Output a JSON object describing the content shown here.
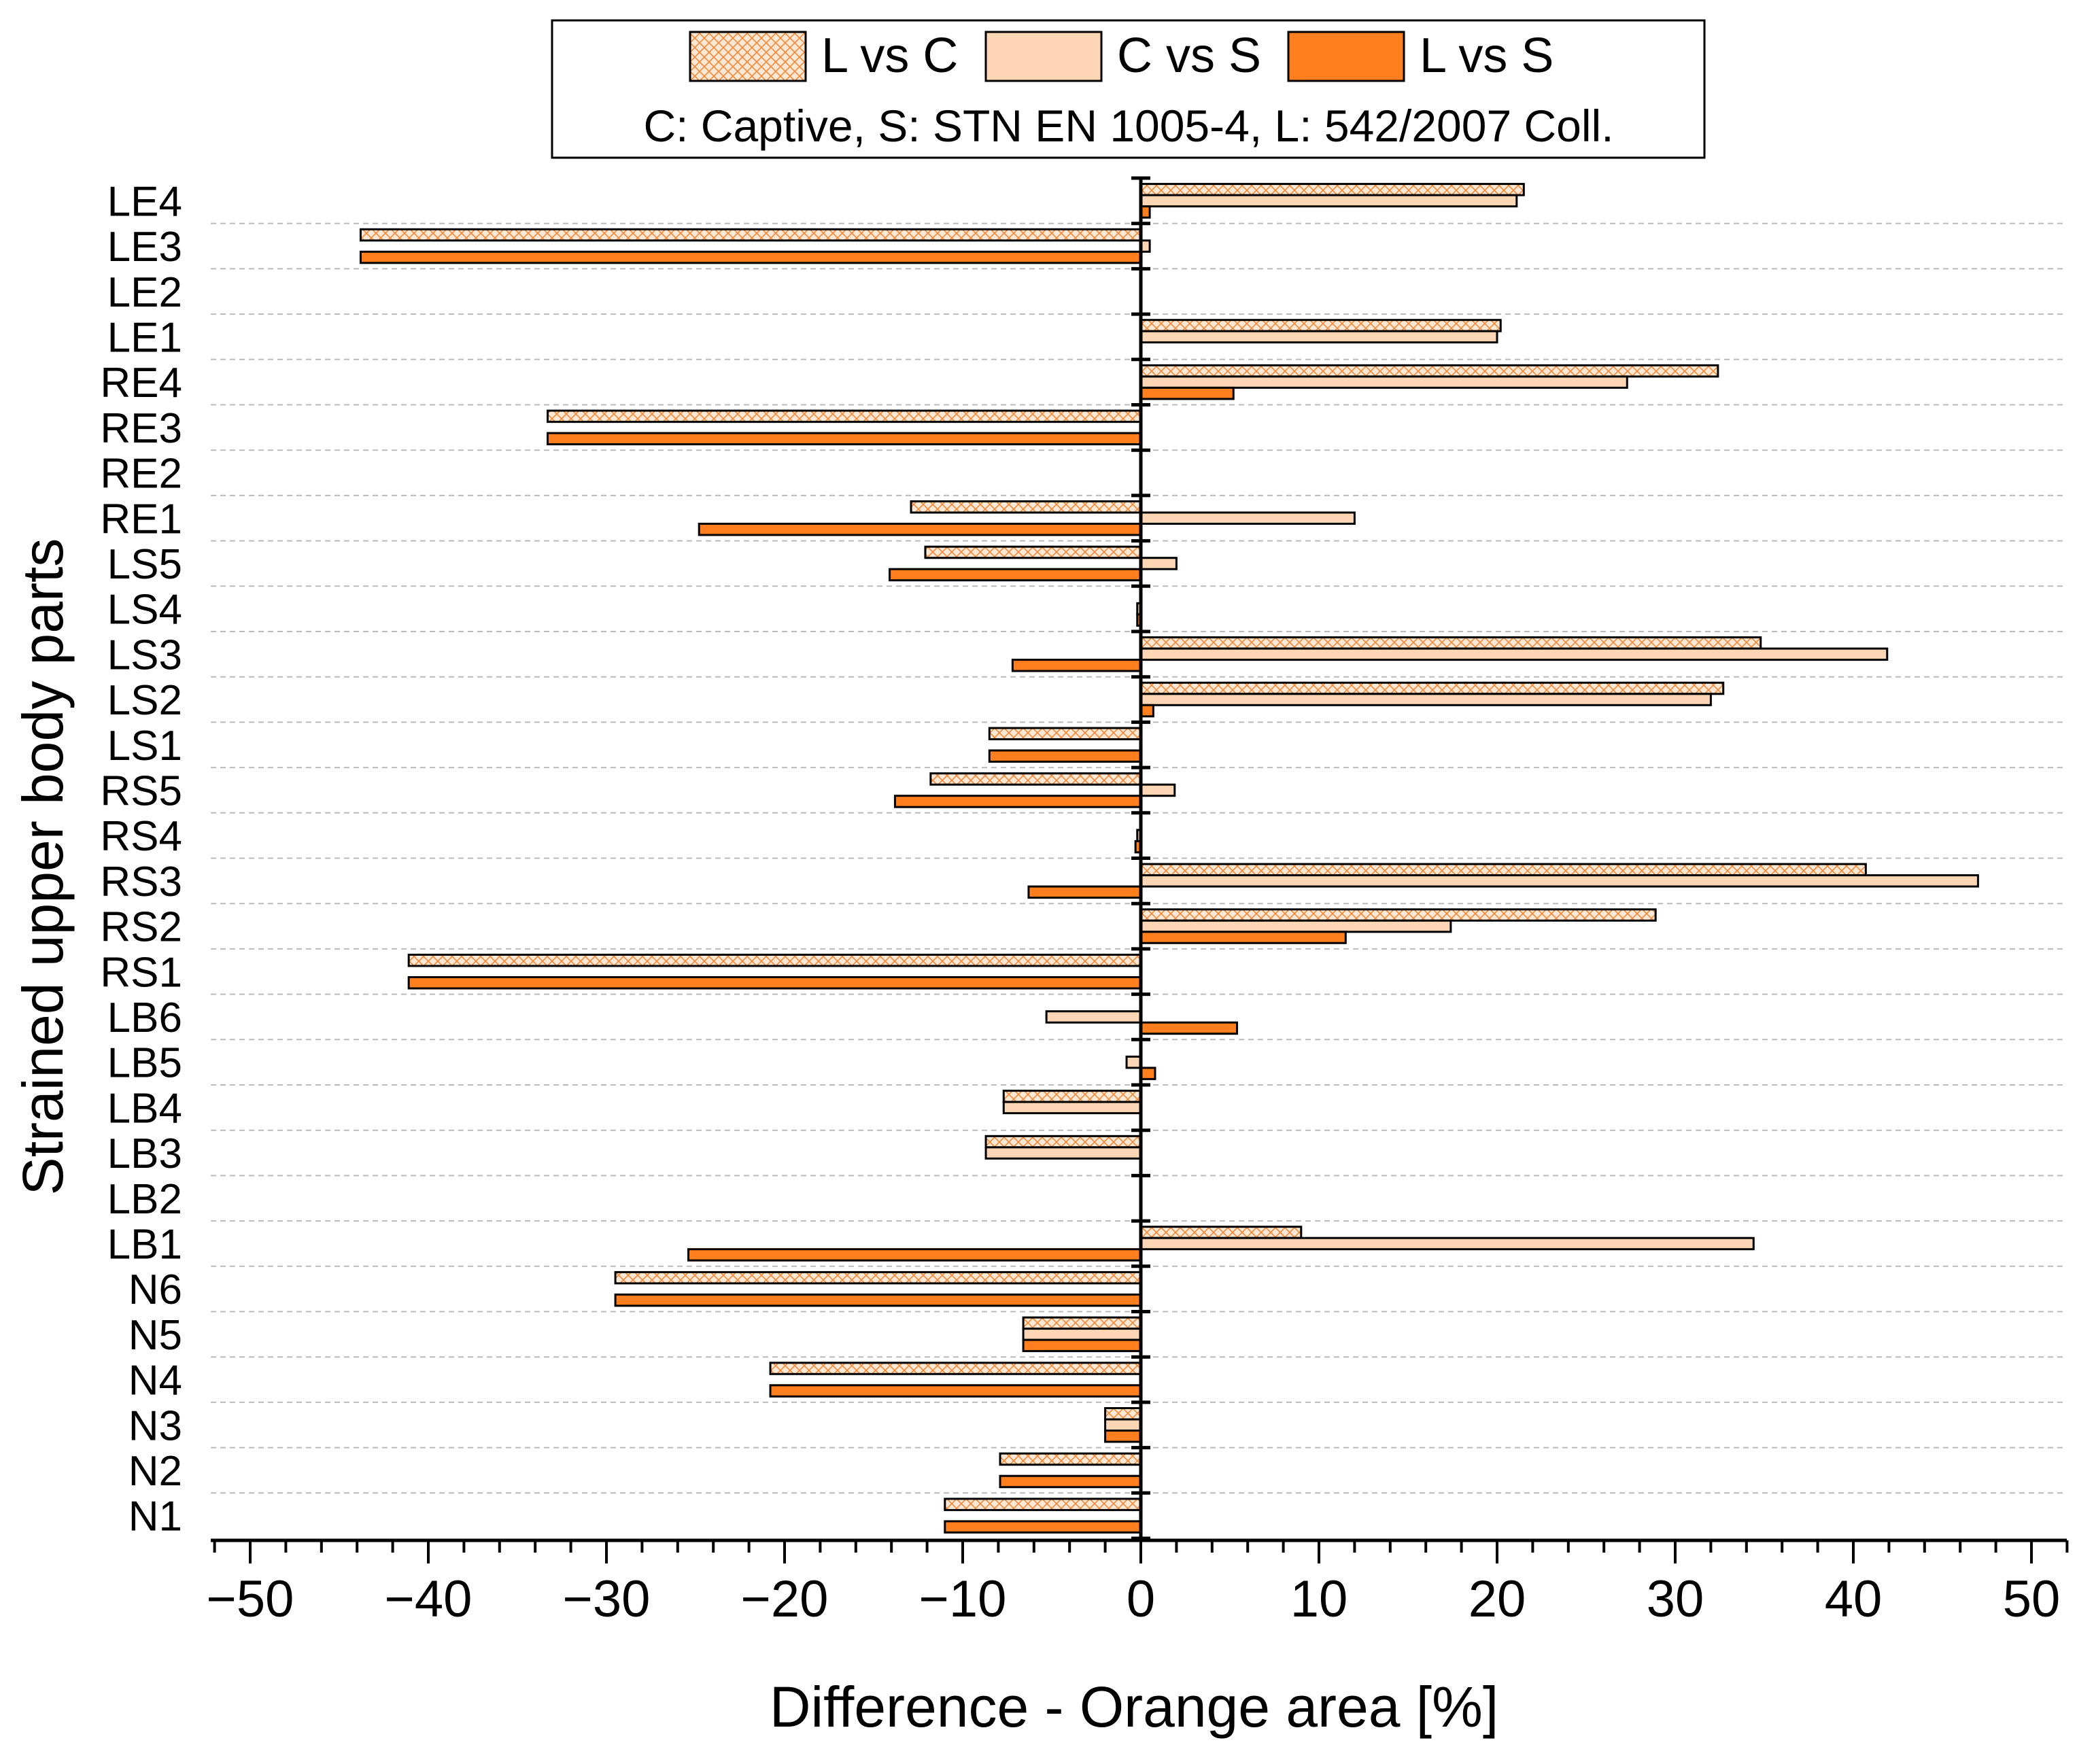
{
  "chart_data": {
    "type": "bar",
    "orientation": "horizontal",
    "title": "",
    "xlabel": "Difference - Orange area [%]",
    "ylabel": "Strained upper body parts",
    "xlim": [
      -52,
      52
    ],
    "xticks": [
      -50,
      -40,
      -30,
      -20,
      -10,
      0,
      10,
      20,
      30,
      40,
      50
    ],
    "xtick_labels": [
      "−50",
      "−40",
      "−30",
      "−20",
      "−10",
      "0",
      "10",
      "20",
      "30",
      "40",
      "50"
    ],
    "grid": "horizontal dashed separators",
    "legend_position": "top-center",
    "legend_note": "C: Captive, S: STN EN 1005-4, L: 542/2007 Coll.",
    "categories": [
      "LE4",
      "LE3",
      "LE2",
      "LE1",
      "RE4",
      "RE3",
      "RE2",
      "RE1",
      "LS5",
      "LS4",
      "LS3",
      "LS2",
      "LS1",
      "RS5",
      "RS4",
      "RS3",
      "RS2",
      "RS1",
      "LB6",
      "LB5",
      "LB4",
      "LB3",
      "LB2",
      "LB1",
      "N6",
      "N5",
      "N4",
      "N3",
      "N2",
      "N1"
    ],
    "series": [
      {
        "name": "L vs C",
        "style": "hatched",
        "values": [
          21.5,
          -43.8,
          0,
          20.2,
          32.4,
          -33.3,
          0,
          -12.9,
          -12.1,
          0,
          34.8,
          32.7,
          -8.5,
          -11.8,
          0,
          40.7,
          28.9,
          -41.1,
          0,
          0,
          -7.7,
          -8.7,
          0,
          9.0,
          -29.5,
          -6.6,
          -20.8,
          -2.0,
          -7.9,
          -11.0
        ]
      },
      {
        "name": "C vs S",
        "style": "light",
        "values": [
          21.1,
          0.5,
          0,
          20.0,
          27.3,
          0,
          0,
          12.0,
          2.0,
          -0.2,
          41.9,
          32.0,
          0,
          1.9,
          -0.2,
          47.0,
          17.4,
          0,
          -5.3,
          -0.8,
          -7.7,
          -8.7,
          0,
          34.4,
          0,
          -6.6,
          0,
          -2.0,
          0,
          0
        ]
      },
      {
        "name": "L vs S",
        "style": "dark",
        "values": [
          0.5,
          -43.8,
          0,
          0,
          5.2,
          -33.3,
          0,
          -24.8,
          -14.1,
          -0.2,
          -7.2,
          0.7,
          -8.5,
          -13.8,
          -0.3,
          -6.3,
          11.5,
          -41.1,
          5.4,
          0.8,
          0,
          0,
          0,
          -25.4,
          -29.5,
          -6.6,
          -20.8,
          -2.0,
          -7.9,
          -11.0
        ]
      }
    ]
  },
  "colors": {
    "hatch_fill": "#fde7d5",
    "hatch_line": "#f08a38",
    "light_fill": "#fdd6b5",
    "dark_fill": "#ff7f1e",
    "outline": "#000000",
    "grid": "#bbbbbb"
  }
}
